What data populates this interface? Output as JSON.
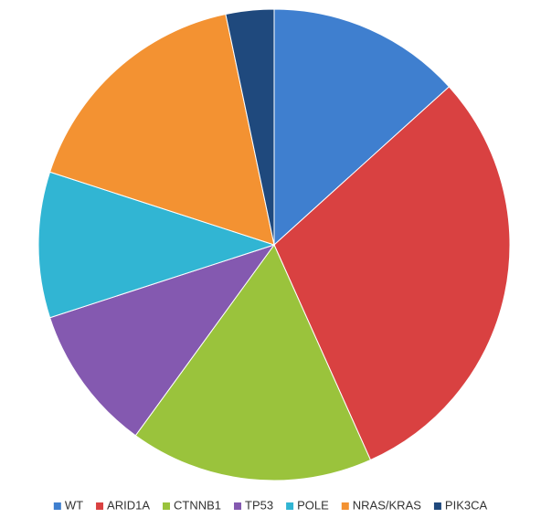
{
  "chart_data": {
    "type": "pie",
    "categories": [
      "WT",
      "ARID1A",
      "CTNNB1",
      "TP53",
      "POLE",
      "NRAS/KRAS",
      "PIK3CA"
    ],
    "values": [
      13.3,
      30,
      16.7,
      10,
      10,
      16.7,
      3.3
    ],
    "colors": [
      "#3f7fcf",
      "#d94141",
      "#9ac33c",
      "#8459b0",
      "#31b5d3",
      "#f39232",
      "#1f497d"
    ],
    "legend": "bottom"
  }
}
